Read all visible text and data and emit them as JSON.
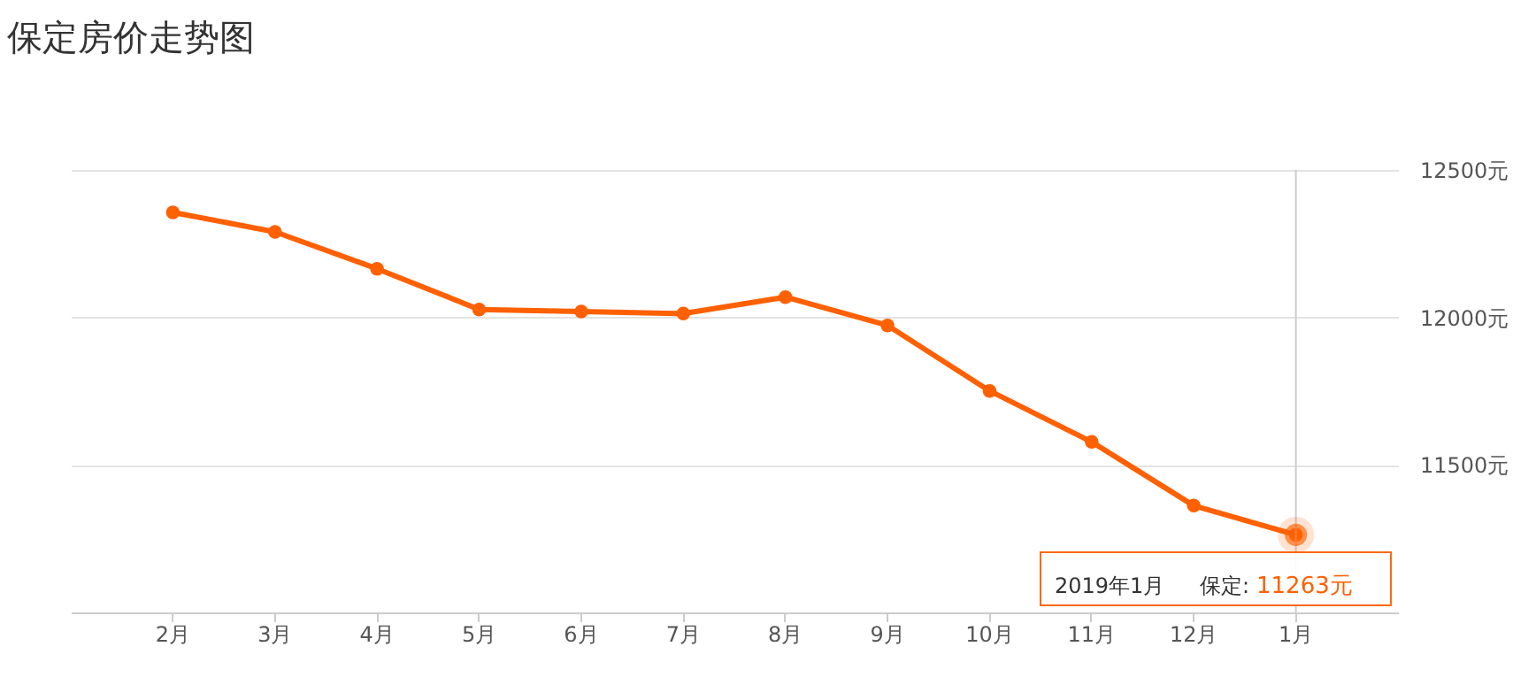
{
  "chart_data": {
    "type": "line",
    "title": "保定房价走势图",
    "categories": [
      "2月",
      "3月",
      "4月",
      "5月",
      "6月",
      "7月",
      "8月",
      "9月",
      "10月",
      "11月",
      "12月",
      "1月"
    ],
    "series": [
      {
        "color": "#ff6000",
        "values": [
          12356,
          12290,
          12165,
          12027,
          12020,
          12013,
          12069,
          11973,
          11751,
          11578,
          11362,
          11263
        ],
        "value_labels": [
          null,
          null,
          null,
          null,
          null,
          null,
          null,
          null,
          null,
          null,
          null,
          "11263元"
        ]
      }
    ],
    "ylim": [
      11000,
      12500
    ],
    "yticks": [
      {
        "value": 11500,
        "label": "11500元"
      },
      {
        "value": 12000,
        "label": "12000元"
      },
      {
        "value": 12500,
        "label": "12500元"
      }
    ],
    "grid": "y",
    "marker": "circle",
    "line_style": "solid",
    "ref_lines": [
      {
        "axis": "x",
        "value": "1月"
      }
    ],
    "annotations": [
      "2019年1月",
      "保定:"
    ]
  }
}
